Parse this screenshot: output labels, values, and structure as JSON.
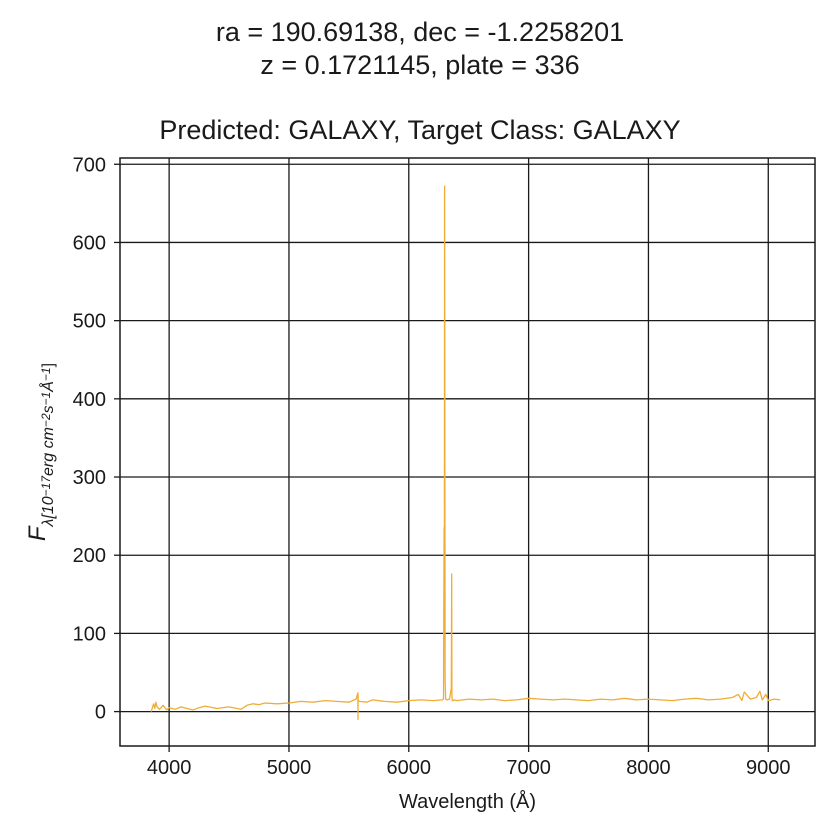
{
  "chart_data": {
    "type": "line",
    "title_lines": [
      "ra = 190.69138, dec = -1.2258201",
      "z = 0.1721145, plate = 336",
      "Predicted: GALAXY, Target Class: GALAXY"
    ],
    "xlabel": "Wavelength (Å)",
    "ylabel": "F_λ[10^-17 erg cm^-2 s^-1 Å^-1]",
    "xlim": [
      3590,
      9390
    ],
    "ylim": [
      -44,
      708
    ],
    "xticks": [
      4000,
      5000,
      6000,
      7000,
      8000,
      9000
    ],
    "yticks": [
      0,
      100,
      200,
      300,
      400,
      500,
      600,
      700
    ],
    "grid": true,
    "legend": "none",
    "series": [
      {
        "color": "#f0ad35",
        "x": [
          3850,
          3870,
          3880,
          3890,
          3900,
          3920,
          3950,
          3980,
          4000,
          4050,
          4100,
          4150,
          4200,
          4250,
          4300,
          4400,
          4500,
          4600,
          4650,
          4700,
          4750,
          4800,
          4900,
          5000,
          5100,
          5200,
          5300,
          5400,
          5500,
          5560,
          5575,
          5576,
          5577,
          5578,
          5590,
          5650,
          5700,
          5800,
          5900,
          6000,
          6100,
          6200,
          6280,
          6290,
          6295,
          6297,
          6299,
          6301,
          6303,
          6307,
          6320,
          6340,
          6355,
          6358,
          6360,
          6362,
          6365,
          6380,
          6400,
          6500,
          6600,
          6700,
          6800,
          6900,
          7000,
          7100,
          7200,
          7300,
          7400,
          7500,
          7600,
          7700,
          7800,
          7900,
          8000,
          8100,
          8200,
          8300,
          8400,
          8500,
          8600,
          8700,
          8750,
          8780,
          8800,
          8850,
          8900,
          8930,
          8950,
          8980,
          9000,
          9050,
          9100
        ],
        "y": [
          0,
          10,
          4,
          12,
          6,
          3,
          8,
          2,
          5,
          3,
          6,
          4,
          2,
          5,
          7,
          4,
          6,
          3,
          8,
          10,
          9,
          11,
          10,
          11,
          13,
          12,
          14,
          13,
          12,
          16,
          24,
          -10,
          22,
          14,
          13,
          12,
          15,
          13,
          12,
          14,
          15,
          14,
          15,
          16,
          235,
          200,
          672,
          300,
          40,
          16,
          15,
          16,
          30,
          176,
          20,
          16,
          14,
          15,
          14,
          16,
          15,
          16,
          14,
          15,
          17,
          16,
          15,
          16,
          15,
          14,
          16,
          15,
          17,
          15,
          16,
          15,
          14,
          16,
          17,
          15,
          16,
          18,
          22,
          14,
          25,
          16,
          18,
          26,
          15,
          22,
          14,
          16,
          15
        ]
      }
    ]
  }
}
